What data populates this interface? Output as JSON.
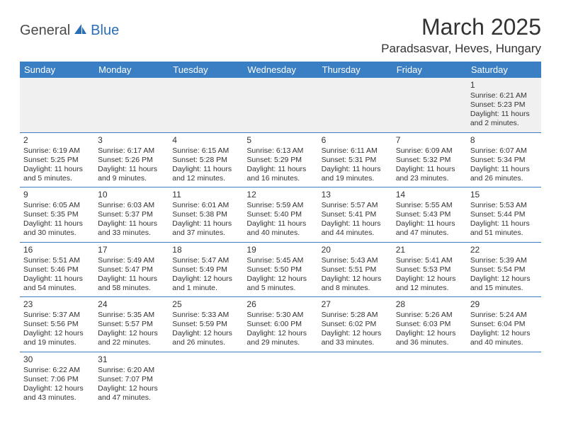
{
  "logo": {
    "part1": "General",
    "part2": "Blue"
  },
  "title": "March 2025",
  "location": "Paradsasvar, Heves, Hungary",
  "header_bg": "#3a7fc4",
  "header_text_color": "#ffffff",
  "divider_color": "#3a7fc4",
  "blank_bg": "#f0f0f0",
  "text_color": "#333333",
  "logo_grey": "#4a4a4a",
  "logo_blue": "#2a6fb5",
  "days": [
    "Sunday",
    "Monday",
    "Tuesday",
    "Wednesday",
    "Thursday",
    "Friday",
    "Saturday"
  ],
  "weeks": [
    [
      null,
      null,
      null,
      null,
      null,
      null,
      {
        "n": "1",
        "sr": "Sunrise: 6:21 AM",
        "ss": "Sunset: 5:23 PM",
        "dl1": "Daylight: 11 hours",
        "dl2": "and 2 minutes."
      }
    ],
    [
      {
        "n": "2",
        "sr": "Sunrise: 6:19 AM",
        "ss": "Sunset: 5:25 PM",
        "dl1": "Daylight: 11 hours",
        "dl2": "and 5 minutes."
      },
      {
        "n": "3",
        "sr": "Sunrise: 6:17 AM",
        "ss": "Sunset: 5:26 PM",
        "dl1": "Daylight: 11 hours",
        "dl2": "and 9 minutes."
      },
      {
        "n": "4",
        "sr": "Sunrise: 6:15 AM",
        "ss": "Sunset: 5:28 PM",
        "dl1": "Daylight: 11 hours",
        "dl2": "and 12 minutes."
      },
      {
        "n": "5",
        "sr": "Sunrise: 6:13 AM",
        "ss": "Sunset: 5:29 PM",
        "dl1": "Daylight: 11 hours",
        "dl2": "and 16 minutes."
      },
      {
        "n": "6",
        "sr": "Sunrise: 6:11 AM",
        "ss": "Sunset: 5:31 PM",
        "dl1": "Daylight: 11 hours",
        "dl2": "and 19 minutes."
      },
      {
        "n": "7",
        "sr": "Sunrise: 6:09 AM",
        "ss": "Sunset: 5:32 PM",
        "dl1": "Daylight: 11 hours",
        "dl2": "and 23 minutes."
      },
      {
        "n": "8",
        "sr": "Sunrise: 6:07 AM",
        "ss": "Sunset: 5:34 PM",
        "dl1": "Daylight: 11 hours",
        "dl2": "and 26 minutes."
      }
    ],
    [
      {
        "n": "9",
        "sr": "Sunrise: 6:05 AM",
        "ss": "Sunset: 5:35 PM",
        "dl1": "Daylight: 11 hours",
        "dl2": "and 30 minutes."
      },
      {
        "n": "10",
        "sr": "Sunrise: 6:03 AM",
        "ss": "Sunset: 5:37 PM",
        "dl1": "Daylight: 11 hours",
        "dl2": "and 33 minutes."
      },
      {
        "n": "11",
        "sr": "Sunrise: 6:01 AM",
        "ss": "Sunset: 5:38 PM",
        "dl1": "Daylight: 11 hours",
        "dl2": "and 37 minutes."
      },
      {
        "n": "12",
        "sr": "Sunrise: 5:59 AM",
        "ss": "Sunset: 5:40 PM",
        "dl1": "Daylight: 11 hours",
        "dl2": "and 40 minutes."
      },
      {
        "n": "13",
        "sr": "Sunrise: 5:57 AM",
        "ss": "Sunset: 5:41 PM",
        "dl1": "Daylight: 11 hours",
        "dl2": "and 44 minutes."
      },
      {
        "n": "14",
        "sr": "Sunrise: 5:55 AM",
        "ss": "Sunset: 5:43 PM",
        "dl1": "Daylight: 11 hours",
        "dl2": "and 47 minutes."
      },
      {
        "n": "15",
        "sr": "Sunrise: 5:53 AM",
        "ss": "Sunset: 5:44 PM",
        "dl1": "Daylight: 11 hours",
        "dl2": "and 51 minutes."
      }
    ],
    [
      {
        "n": "16",
        "sr": "Sunrise: 5:51 AM",
        "ss": "Sunset: 5:46 PM",
        "dl1": "Daylight: 11 hours",
        "dl2": "and 54 minutes."
      },
      {
        "n": "17",
        "sr": "Sunrise: 5:49 AM",
        "ss": "Sunset: 5:47 PM",
        "dl1": "Daylight: 11 hours",
        "dl2": "and 58 minutes."
      },
      {
        "n": "18",
        "sr": "Sunrise: 5:47 AM",
        "ss": "Sunset: 5:49 PM",
        "dl1": "Daylight: 12 hours",
        "dl2": "and 1 minute."
      },
      {
        "n": "19",
        "sr": "Sunrise: 5:45 AM",
        "ss": "Sunset: 5:50 PM",
        "dl1": "Daylight: 12 hours",
        "dl2": "and 5 minutes."
      },
      {
        "n": "20",
        "sr": "Sunrise: 5:43 AM",
        "ss": "Sunset: 5:51 PM",
        "dl1": "Daylight: 12 hours",
        "dl2": "and 8 minutes."
      },
      {
        "n": "21",
        "sr": "Sunrise: 5:41 AM",
        "ss": "Sunset: 5:53 PM",
        "dl1": "Daylight: 12 hours",
        "dl2": "and 12 minutes."
      },
      {
        "n": "22",
        "sr": "Sunrise: 5:39 AM",
        "ss": "Sunset: 5:54 PM",
        "dl1": "Daylight: 12 hours",
        "dl2": "and 15 minutes."
      }
    ],
    [
      {
        "n": "23",
        "sr": "Sunrise: 5:37 AM",
        "ss": "Sunset: 5:56 PM",
        "dl1": "Daylight: 12 hours",
        "dl2": "and 19 minutes."
      },
      {
        "n": "24",
        "sr": "Sunrise: 5:35 AM",
        "ss": "Sunset: 5:57 PM",
        "dl1": "Daylight: 12 hours",
        "dl2": "and 22 minutes."
      },
      {
        "n": "25",
        "sr": "Sunrise: 5:33 AM",
        "ss": "Sunset: 5:59 PM",
        "dl1": "Daylight: 12 hours",
        "dl2": "and 26 minutes."
      },
      {
        "n": "26",
        "sr": "Sunrise: 5:30 AM",
        "ss": "Sunset: 6:00 PM",
        "dl1": "Daylight: 12 hours",
        "dl2": "and 29 minutes."
      },
      {
        "n": "27",
        "sr": "Sunrise: 5:28 AM",
        "ss": "Sunset: 6:02 PM",
        "dl1": "Daylight: 12 hours",
        "dl2": "and 33 minutes."
      },
      {
        "n": "28",
        "sr": "Sunrise: 5:26 AM",
        "ss": "Sunset: 6:03 PM",
        "dl1": "Daylight: 12 hours",
        "dl2": "and 36 minutes."
      },
      {
        "n": "29",
        "sr": "Sunrise: 5:24 AM",
        "ss": "Sunset: 6:04 PM",
        "dl1": "Daylight: 12 hours",
        "dl2": "and 40 minutes."
      }
    ],
    [
      {
        "n": "30",
        "sr": "Sunrise: 6:22 AM",
        "ss": "Sunset: 7:06 PM",
        "dl1": "Daylight: 12 hours",
        "dl2": "and 43 minutes."
      },
      {
        "n": "31",
        "sr": "Sunrise: 6:20 AM",
        "ss": "Sunset: 7:07 PM",
        "dl1": "Daylight: 12 hours",
        "dl2": "and 47 minutes."
      },
      null,
      null,
      null,
      null,
      null
    ]
  ]
}
